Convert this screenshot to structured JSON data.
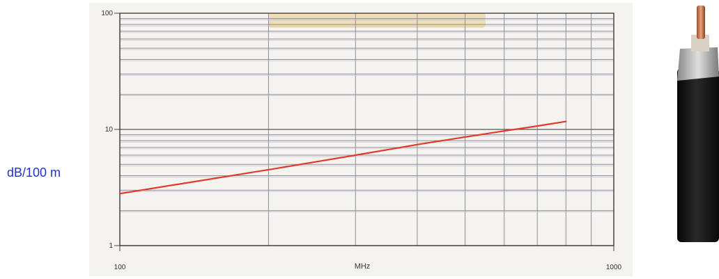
{
  "chart_data": {
    "type": "line",
    "title": "",
    "xlabel": "MHz",
    "ylabel": "dB/100 m",
    "xscale": "log",
    "yscale": "log",
    "xlim": [
      100,
      1000
    ],
    "ylim": [
      1,
      100
    ],
    "x_ticks": [
      {
        "value": 100,
        "label": "100"
      },
      {
        "value": 1000,
        "label": "1000"
      }
    ],
    "y_ticks": [
      {
        "value": 1,
        "label": "1"
      },
      {
        "value": 10,
        "label": "10"
      },
      {
        "value": 100,
        "label": "100"
      }
    ],
    "grid": true,
    "series": [
      {
        "color": "#e03a2a",
        "x": [
          100,
          200,
          300,
          400,
          500,
          600,
          700,
          800
        ],
        "y": [
          2.8,
          4.5,
          6.0,
          7.4,
          8.6,
          9.7,
          10.7,
          11.7
        ]
      }
    ],
    "highlight_band": {
      "x_from": 200,
      "x_to": 550,
      "y_from": 75,
      "y_to": 100,
      "color": "#f1d7a8"
    }
  },
  "colors": {
    "ylabel": "#1f2fd0",
    "grid_major": "#555555",
    "grid_minor": "#8d8d9a",
    "cable_jacket": "#151515",
    "cable_braid": "#bcbcbc",
    "cable_conductor": "#c9794e"
  },
  "figure": {
    "cable_image": "coax-cable-icon"
  }
}
